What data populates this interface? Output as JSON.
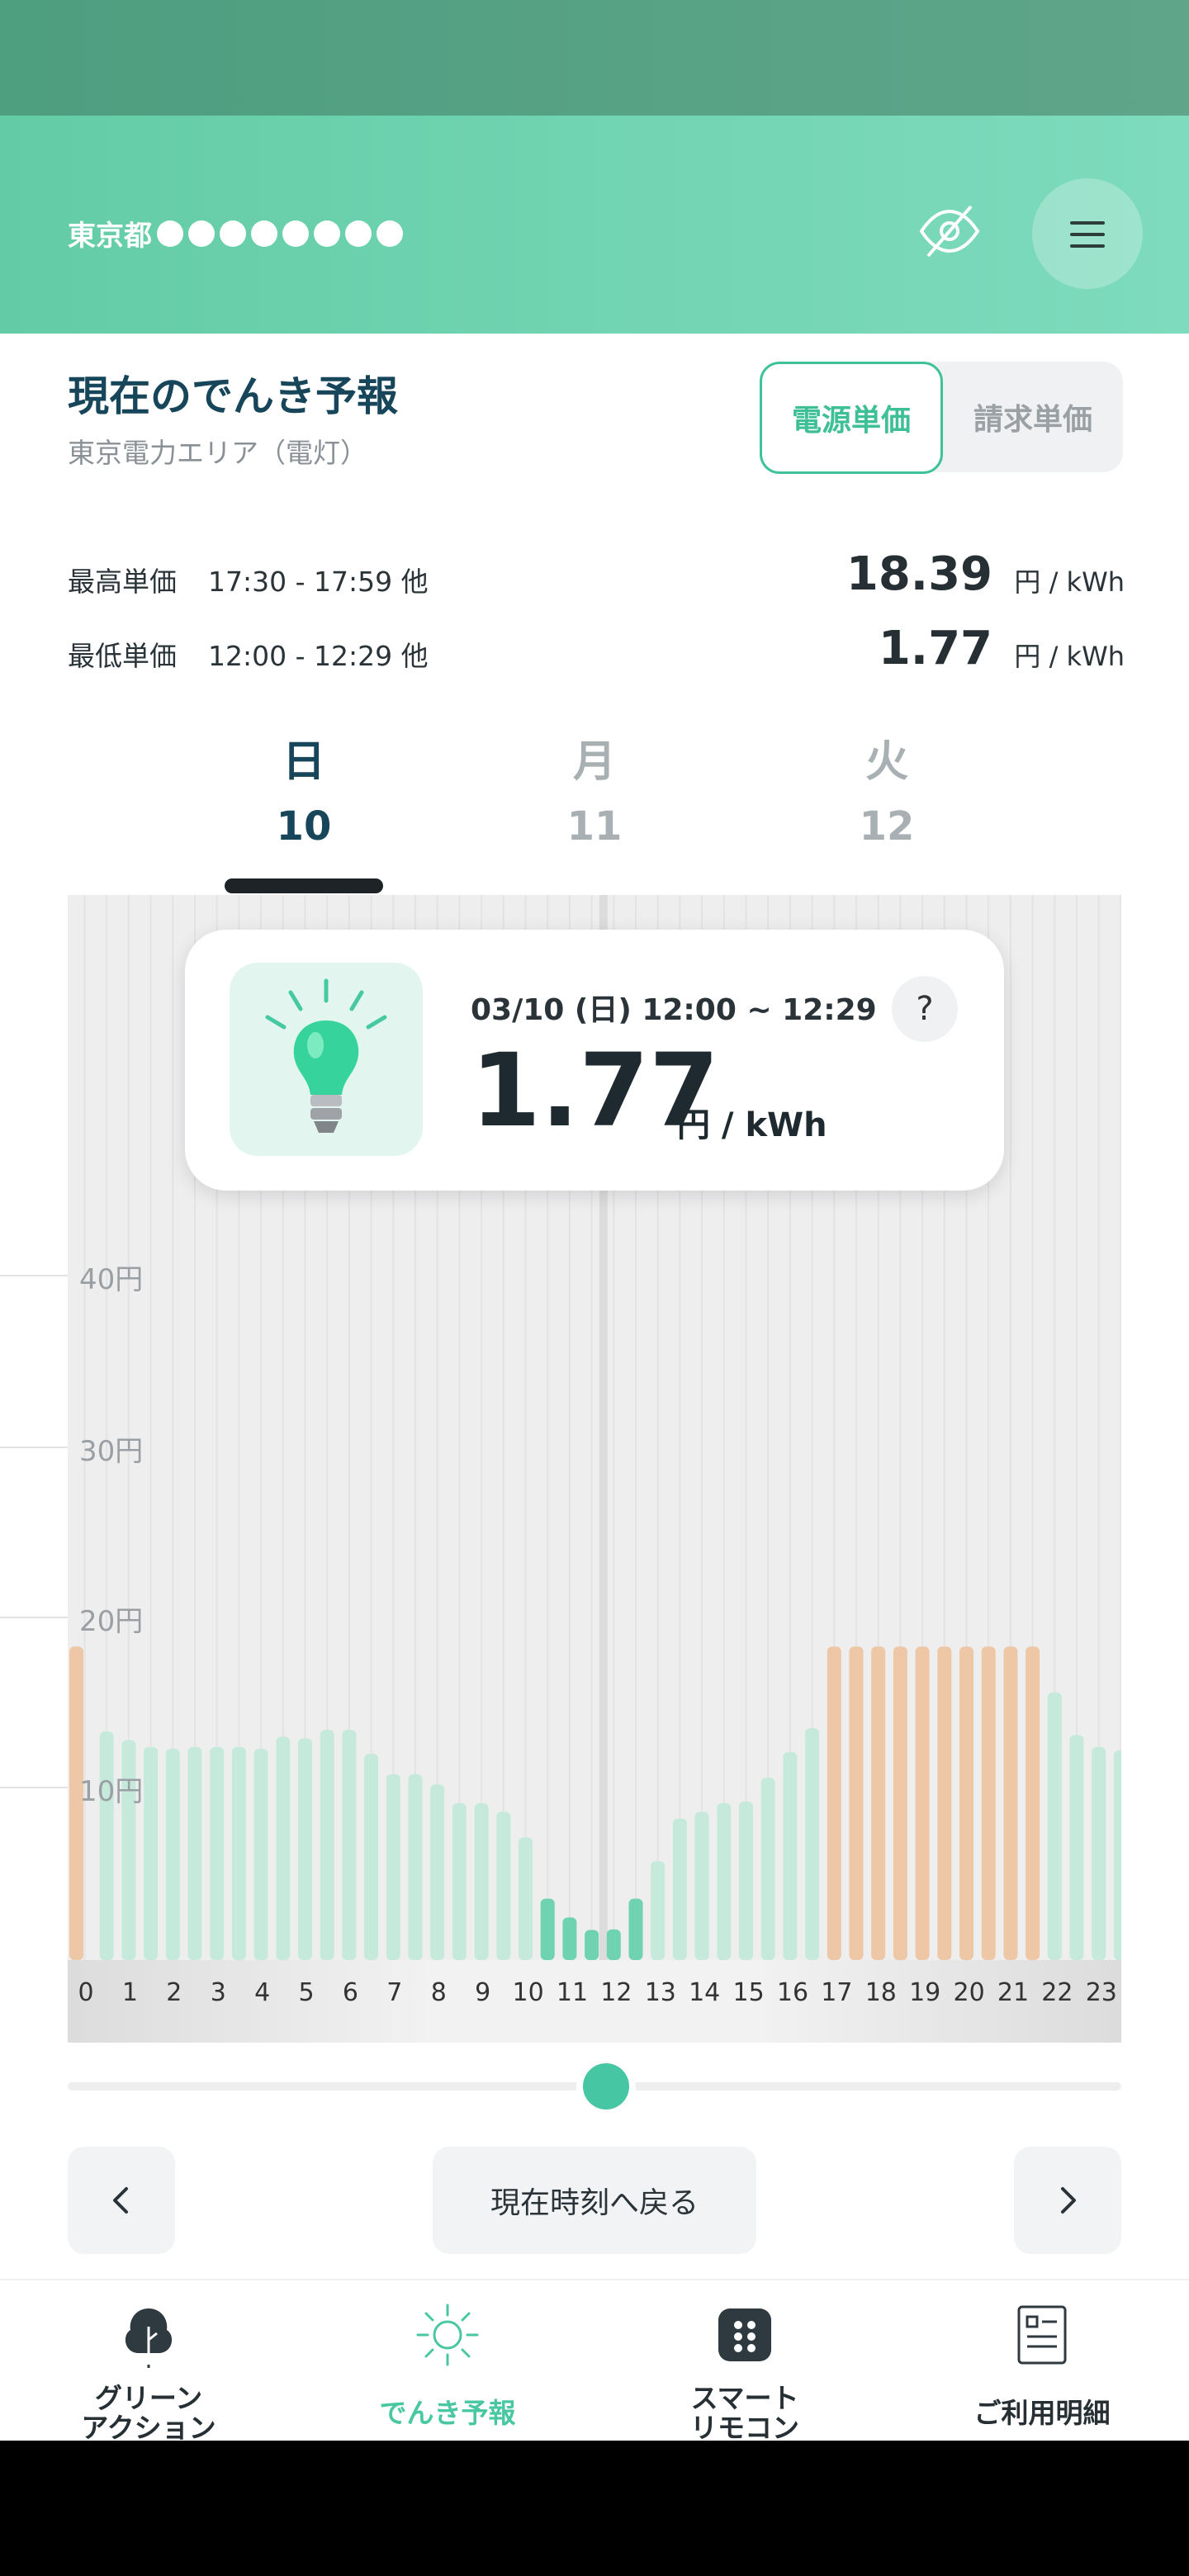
{
  "header": {
    "address_prefix": "東京都",
    "masked_dot_count": 8,
    "eye_icon": "eye-off-icon",
    "menu_icon": "hamburger-menu-icon"
  },
  "forecast": {
    "title": "現在のでんき予報",
    "area": "東京電力エリア（電灯）",
    "toggle": {
      "selected": "電源単価",
      "other": "請求単価"
    },
    "max": {
      "label": "最高単価",
      "time": "17:30 - 17:59 他",
      "value": "18.39",
      "unit": "円 / kWh"
    },
    "min": {
      "label": "最低単価",
      "time": "12:00 - 12:29 他",
      "value": "1.77",
      "unit": "円 / kWh"
    }
  },
  "days": [
    {
      "weekday": "日",
      "date": "10",
      "active": true
    },
    {
      "weekday": "月",
      "date": "11",
      "active": false
    },
    {
      "weekday": "火",
      "date": "12",
      "active": false
    }
  ],
  "selected": {
    "datetime": "03/10 (日) 12:00 ~ 12:29",
    "value": "1.77",
    "unit": "円 / kWh",
    "help": "?"
  },
  "chart_data": {
    "type": "bar",
    "ylim": [
      0,
      40
    ],
    "y_ticks": [
      "10円",
      "20円",
      "30円",
      "40円"
    ],
    "hour_labels": [
      "0",
      "1",
      "2",
      "3",
      "4",
      "5",
      "6",
      "7",
      "8",
      "9",
      "10",
      "11",
      "12",
      "13",
      "14",
      "15",
      "16",
      "17",
      "18",
      "19",
      "20",
      "21",
      "22",
      "23"
    ],
    "values": [
      18.39,
      13.4,
      12.9,
      12.5,
      12.4,
      12.5,
      12.5,
      12.5,
      12.4,
      13.1,
      13.0,
      13.5,
      13.5,
      12.1,
      10.9,
      10.9,
      10.3,
      9.2,
      9.2,
      8.7,
      7.2,
      3.6,
      2.5,
      1.77,
      1.8,
      3.6,
      5.8,
      8.3,
      8.7,
      9.2,
      9.3,
      10.7,
      12.2,
      13.6,
      18.39,
      18.39,
      18.39,
      18.39,
      18.39,
      18.39,
      18.39,
      18.39,
      18.39,
      18.39,
      15.7,
      13.2,
      12.5,
      12.3,
      11.1
    ],
    "peak_value": 18.39,
    "low_value": 1.77,
    "colors": {
      "peak": "#edc7a6",
      "normal": "#c5eadb",
      "low": "#6fd3b2"
    }
  },
  "controls": {
    "prev_icon": "chevron-left-icon",
    "next_icon": "chevron-right-icon",
    "now_label": "現在時刻へ戻る"
  },
  "tabs": [
    {
      "line1": "グリーン",
      "line2": "アクション",
      "icon": "tree-icon",
      "active": false
    },
    {
      "line1": "でんき予報",
      "line2": "",
      "icon": "sun-icon",
      "active": true
    },
    {
      "line1": "スマート",
      "line2": "リモコン",
      "icon": "remote-icon",
      "active": false
    },
    {
      "line1": "ご利用明細",
      "line2": "",
      "icon": "document-icon",
      "active": false
    }
  ]
}
